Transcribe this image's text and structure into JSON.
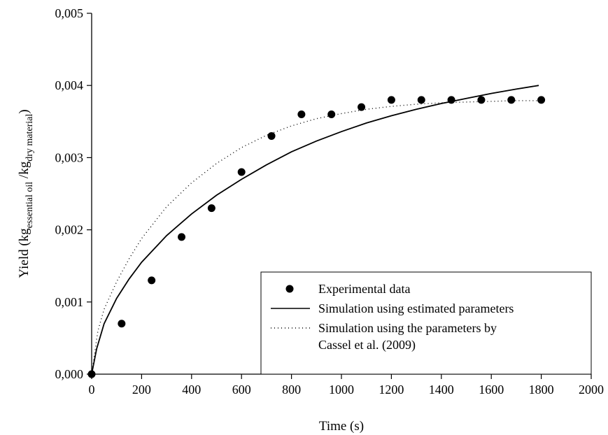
{
  "chart_data": {
    "type": "scatter",
    "xlabel": "Time (s)",
    "ylabel": {
      "prefix": "Yield (kg",
      "sub1": "essential oil",
      "mid": " /kg",
      "sub2": "dry material",
      "suffix": ")"
    },
    "xlim": [
      0,
      2000
    ],
    "ylim": [
      0,
      0.005
    ],
    "x_ticks": [
      "0",
      "200",
      "400",
      "600",
      "800",
      "1000",
      "1200",
      "1400",
      "1600",
      "1800",
      "2000"
    ],
    "y_ticks": [
      "0,000",
      "0,001",
      "0,002",
      "0,003",
      "0,004",
      "0,005"
    ],
    "grid": false,
    "legend_position": "bottom-right",
    "series": [
      {
        "name": "Experimental data",
        "kind": "markers",
        "x": [
          0,
          120,
          240,
          360,
          480,
          600,
          720,
          840,
          960,
          1080,
          1200,
          1320,
          1440,
          1560,
          1680,
          1800
        ],
        "y": [
          0,
          0.0007,
          0.0013,
          0.0019,
          0.0023,
          0.0028,
          0.0033,
          0.0036,
          0.0036,
          0.0037,
          0.0038,
          0.0038,
          0.0038,
          0.0038,
          0.0038,
          0.0038
        ]
      },
      {
        "name": "Simulation using estimated parameters",
        "kind": "solid-line",
        "x": [
          0,
          20,
          50,
          100,
          150,
          200,
          300,
          400,
          500,
          600,
          700,
          800,
          900,
          1000,
          1100,
          1200,
          1300,
          1400,
          1500,
          1600,
          1700,
          1790
        ],
        "y": [
          0,
          0.00035,
          0.0007,
          0.00105,
          0.00132,
          0.00155,
          0.00192,
          0.00222,
          0.00248,
          0.0027,
          0.0029,
          0.00308,
          0.00323,
          0.00336,
          0.00348,
          0.00358,
          0.00367,
          0.00375,
          0.00382,
          0.00389,
          0.00395,
          0.004
        ]
      },
      {
        "name": "Simulation using the parameters by Cassel et al. (2009)",
        "legend_lines": [
          "Simulation using the parameters by",
          "Cassel et al. (2009)"
        ],
        "kind": "dotted-line",
        "x": [
          0,
          25,
          50,
          100,
          150,
          200,
          300,
          400,
          500,
          600,
          700,
          800,
          900,
          1000,
          1100,
          1200,
          1300,
          1400,
          1500,
          1600,
          1700,
          1800
        ],
        "y": [
          0,
          0.0006,
          0.0009,
          0.00128,
          0.0016,
          0.00188,
          0.00232,
          0.00265,
          0.00292,
          0.00314,
          0.00331,
          0.00344,
          0.00354,
          0.00361,
          0.00367,
          0.00371,
          0.00374,
          0.00376,
          0.00377,
          0.00378,
          0.00379,
          0.00379
        ]
      }
    ]
  }
}
